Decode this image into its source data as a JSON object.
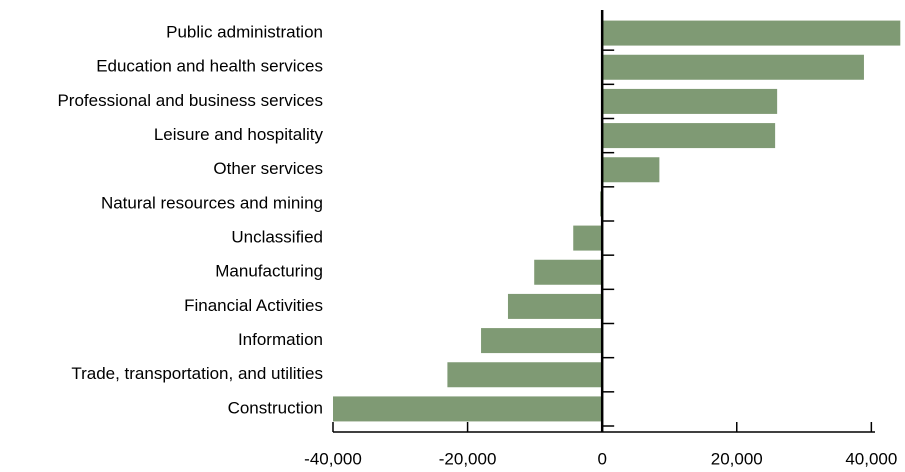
{
  "chart_data": {
    "type": "hbar",
    "categories": [
      "Public administration",
      "Education and health services",
      "Professional and business services",
      "Leisure and hospitality",
      "Other services",
      "Natural resources and mining",
      "Unclassified",
      "Manufacturing",
      "Financial Activities",
      "Information",
      "Trade, transportation, and utilities",
      "Construction"
    ],
    "values": [
      44300,
      38900,
      26000,
      25700,
      8500,
      -300,
      -4300,
      -10100,
      -14000,
      -18000,
      -23000,
      -40000
    ],
    "color": "#7f9a74",
    "xlim": [
      -40000,
      45000
    ],
    "xticks": [
      {
        "value": -40000,
        "label": "-40,000"
      },
      {
        "value": -20000,
        "label": "-20,000"
      },
      0,
      {
        "value": 20000,
        "label": "20,000"
      },
      {
        "value": 40000,
        "label": "40,000"
      }
    ]
  }
}
